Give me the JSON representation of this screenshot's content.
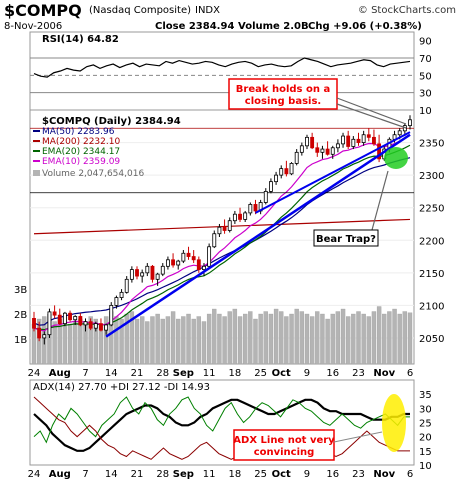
{
  "header": {
    "symbol": "$COMPQ",
    "name": "(Nasdaq Composite)",
    "exchange": "INDX",
    "date": "8-Nov-2006",
    "close": "Close 2384.94",
    "volume": "Volume 2.0B",
    "change": "Chg +9.06 (+0.38%)",
    "copyright": "© StockCharts.com"
  },
  "colors": {
    "up": "#000000",
    "down": "#cc0000",
    "ma50": "#000080",
    "ma200": "#aa0000",
    "ema20": "#006400",
    "ema10": "#cc00cc",
    "trend": "#0000ee",
    "plus_di": "#008000",
    "minus_di": "#8b0000",
    "adx": "#000000",
    "volume": "#b4b4b4",
    "callout": "#ee0000",
    "highlight_green": "#22cc22",
    "highlight_yellow": "#ffee00"
  },
  "chart_data": [
    {
      "type": "line",
      "panel": "RSI",
      "title": "RSI(14) 64.82",
      "ylim": [
        10,
        100
      ],
      "y_ticks": [
        "90",
        "70",
        "50",
        "30",
        "10"
      ],
      "reference_lines": [
        70,
        50,
        30
      ],
      "series": [
        {
          "name": "RSI(14)",
          "values": [
            52,
            49,
            48,
            53,
            55,
            58,
            56,
            55,
            60,
            62,
            58,
            61,
            63,
            59,
            62,
            64,
            60,
            63,
            62,
            61,
            66,
            64,
            67,
            65,
            63,
            64,
            66,
            65,
            62,
            60,
            63,
            65,
            66,
            64,
            60,
            62,
            63,
            61,
            60,
            61,
            66,
            70,
            68,
            66,
            63,
            60,
            62,
            63,
            64,
            66,
            68,
            67,
            62,
            60,
            63,
            64,
            65,
            66
          ]
        }
      ]
    },
    {
      "type": "candlestick",
      "panel": "Price",
      "title": "$COMPQ (Daily) 2384.94",
      "ylim": [
        2010,
        2400
      ],
      "y_ticks": [
        "2350",
        "2300",
        "2250",
        "2200",
        "2150",
        "2100",
        "2050"
      ],
      "x_labels": [
        "24",
        "Aug",
        "7",
        "14",
        "21",
        "28",
        "Sep",
        "11",
        "18",
        "25",
        "Oct",
        "9",
        "16",
        "23",
        "Nov",
        "6"
      ],
      "x_label_indices": [
        0,
        5,
        10,
        15,
        20,
        25,
        29,
        34,
        39,
        44,
        48,
        53,
        58,
        63,
        68,
        73
      ],
      "candles": [
        [
          2080,
          2090,
          2060,
          2065
        ],
        [
          2065,
          2075,
          2045,
          2050
        ],
        [
          2050,
          2060,
          2040,
          2055
        ],
        [
          2055,
          2095,
          2050,
          2090
        ],
        [
          2090,
          2100,
          2080,
          2085
        ],
        [
          2085,
          2095,
          2070,
          2072
        ],
        [
          2072,
          2090,
          2068,
          2088
        ],
        [
          2088,
          2092,
          2075,
          2078
        ],
        [
          2078,
          2085,
          2070,
          2083
        ],
        [
          2083,
          2088,
          2068,
          2070
        ],
        [
          2070,
          2080,
          2060,
          2075
        ],
        [
          2075,
          2080,
          2062,
          2065
        ],
        [
          2065,
          2075,
          2060,
          2072
        ],
        [
          2072,
          2080,
          2060,
          2062
        ],
        [
          2062,
          2072,
          2055,
          2070
        ],
        [
          2070,
          2105,
          2068,
          2100
        ],
        [
          2100,
          2115,
          2095,
          2112
        ],
        [
          2112,
          2125,
          2108,
          2120
        ],
        [
          2120,
          2145,
          2118,
          2140
        ],
        [
          2140,
          2160,
          2135,
          2155
        ],
        [
          2155,
          2160,
          2140,
          2145
        ],
        [
          2145,
          2155,
          2135,
          2150
        ],
        [
          2150,
          2165,
          2145,
          2160
        ],
        [
          2160,
          2162,
          2135,
          2140
        ],
        [
          2140,
          2150,
          2130,
          2148
        ],
        [
          2148,
          2165,
          2145,
          2160
        ],
        [
          2160,
          2175,
          2155,
          2170
        ],
        [
          2170,
          2180,
          2158,
          2162
        ],
        [
          2162,
          2170,
          2155,
          2168
        ],
        [
          2168,
          2185,
          2165,
          2180
        ],
        [
          2180,
          2190,
          2170,
          2175
        ],
        [
          2175,
          2185,
          2165,
          2170
        ],
        [
          2170,
          2175,
          2150,
          2155
        ],
        [
          2155,
          2165,
          2145,
          2160
        ],
        [
          2160,
          2195,
          2158,
          2190
        ],
        [
          2190,
          2215,
          2188,
          2210
        ],
        [
          2210,
          2225,
          2205,
          2220
        ],
        [
          2220,
          2232,
          2210,
          2215
        ],
        [
          2215,
          2235,
          2212,
          2230
        ],
        [
          2230,
          2245,
          2225,
          2240
        ],
        [
          2240,
          2250,
          2228,
          2232
        ],
        [
          2232,
          2245,
          2228,
          2242
        ],
        [
          2242,
          2258,
          2238,
          2255
        ],
        [
          2255,
          2262,
          2240,
          2245
        ],
        [
          2245,
          2262,
          2240,
          2258
        ],
        [
          2258,
          2280,
          2255,
          2275
        ],
        [
          2275,
          2295,
          2272,
          2290
        ],
        [
          2290,
          2305,
          2285,
          2300
        ],
        [
          2300,
          2315,
          2295,
          2310
        ],
        [
          2310,
          2322,
          2298,
          2302
        ],
        [
          2302,
          2320,
          2300,
          2318
        ],
        [
          2318,
          2340,
          2315,
          2335
        ],
        [
          2335,
          2350,
          2330,
          2345
        ],
        [
          2345,
          2362,
          2340,
          2358
        ],
        [
          2358,
          2365,
          2340,
          2342
        ],
        [
          2342,
          2350,
          2328,
          2335
        ],
        [
          2335,
          2345,
          2325,
          2340
        ],
        [
          2340,
          2352,
          2330,
          2332
        ],
        [
          2332,
          2345,
          2325,
          2342
        ],
        [
          2342,
          2355,
          2335,
          2348
        ],
        [
          2348,
          2365,
          2342,
          2360
        ],
        [
          2360,
          2368,
          2340,
          2344
        ],
        [
          2344,
          2360,
          2340,
          2355
        ],
        [
          2355,
          2365,
          2345,
          2350
        ],
        [
          2350,
          2368,
          2345,
          2362
        ],
        [
          2362,
          2372,
          2352,
          2358
        ],
        [
          2358,
          2370,
          2345,
          2348
        ],
        [
          2348,
          2362,
          2320,
          2325
        ],
        [
          2325,
          2345,
          2322,
          2340
        ],
        [
          2340,
          2358,
          2335,
          2355
        ],
        [
          2355,
          2368,
          2350,
          2362
        ],
        [
          2362,
          2372,
          2355,
          2368
        ],
        [
          2368,
          2380,
          2360,
          2376
        ],
        [
          2376,
          2392,
          2370,
          2385
        ]
      ],
      "indicators": [
        {
          "name": "MA(50) 2283.96",
          "start": 2085,
          "end": 2290
        },
        {
          "name": "MA(200) 2232.10",
          "start": 2210,
          "end": 2232
        },
        {
          "name": "EMA(20) 2344.17",
          "start": 2080,
          "end": 2348
        },
        {
          "name": "EMA(10) 2359.09",
          "start": 2075,
          "end": 2362
        }
      ],
      "volume_label": "Volume 2,047,654,016",
      "volume_ticks": [
        "3B",
        "2B",
        "1B"
      ],
      "volume_values": [
        1.6,
        1.8,
        1.9,
        2.0,
        1.7,
        1.8,
        1.9,
        1.6,
        1.7,
        1.8,
        1.7,
        1.9,
        1.8,
        1.6,
        1.9,
        2.1,
        1.9,
        1.8,
        2.0,
        2.1,
        1.8,
        1.9,
        1.7,
        1.9,
        2.0,
        1.8,
        1.9,
        2.1,
        1.8,
        1.9,
        2.0,
        1.8,
        1.9,
        1.7,
        2.0,
        2.2,
        2.0,
        1.9,
        2.1,
        2.2,
        1.9,
        2.0,
        2.1,
        1.8,
        2.0,
        2.1,
        2.0,
        2.2,
        2.1,
        1.9,
        2.0,
        2.2,
        2.1,
        2.0,
        1.9,
        2.1,
        2.0,
        1.8,
        2.0,
        2.1,
        2.2,
        1.9,
        2.0,
        2.1,
        2.0,
        1.9,
        2.1,
        2.3,
        2.0,
        2.1,
        2.2,
        2.0,
        2.1,
        2.05
      ],
      "callouts": [
        "Break holds on a closing basis.",
        "Bear Trap?"
      ]
    },
    {
      "type": "line",
      "panel": "ADX",
      "title": "ADX(14) 27.70 +DI 27.12 -DI 14.93",
      "ylim": [
        10,
        40
      ],
      "y_ticks": [
        "35",
        "30",
        "25",
        "20",
        "15",
        "10"
      ],
      "series": [
        {
          "name": "ADX(14)",
          "values": [
            28,
            26,
            24,
            21,
            19,
            17,
            16,
            15,
            15,
            16,
            18,
            20,
            22,
            24,
            26,
            28,
            29,
            30,
            31,
            31,
            30,
            28,
            27,
            25,
            24,
            24,
            25,
            27,
            28,
            30,
            31,
            32,
            33,
            33,
            32,
            31,
            30,
            29,
            28,
            28,
            29,
            30,
            31,
            32,
            33,
            33,
            32,
            30,
            29,
            29,
            28,
            28,
            28,
            28,
            27,
            26,
            26,
            26,
            27,
            27,
            28,
            28
          ]
        },
        {
          "name": "+DI",
          "values": [
            20,
            22,
            18,
            24,
            28,
            26,
            30,
            28,
            25,
            22,
            20,
            24,
            26,
            28,
            32,
            34,
            30,
            28,
            32,
            30,
            26,
            24,
            28,
            30,
            33,
            34,
            30,
            28,
            24,
            22,
            26,
            30,
            32,
            28,
            25,
            27,
            30,
            32,
            31,
            29,
            27,
            30,
            33,
            32,
            30,
            29,
            27,
            25,
            24,
            26,
            28,
            26,
            24,
            23,
            25,
            26,
            27,
            28,
            26,
            24,
            27,
            27
          ]
        },
        {
          "name": "-DI",
          "values": [
            34,
            32,
            30,
            28,
            26,
            25,
            22,
            20,
            22,
            24,
            22,
            19,
            17,
            16,
            14,
            13,
            15,
            14,
            13,
            12,
            14,
            16,
            14,
            13,
            12,
            13,
            15,
            17,
            18,
            16,
            14,
            13,
            12,
            13,
            14,
            15,
            13,
            12,
            13,
            14,
            15,
            13,
            12,
            13,
            14,
            16,
            17,
            15,
            14,
            13,
            14,
            16,
            18,
            20,
            22,
            20,
            18,
            17,
            16,
            15,
            15,
            15
          ]
        }
      ],
      "x_labels": [
        "24",
        "Aug",
        "7",
        "14",
        "21",
        "28",
        "Sep",
        "11",
        "18",
        "25",
        "Oct",
        "9",
        "16",
        "23",
        "Nov",
        "6"
      ],
      "callouts": [
        "ADX Line not very convincing"
      ]
    }
  ]
}
